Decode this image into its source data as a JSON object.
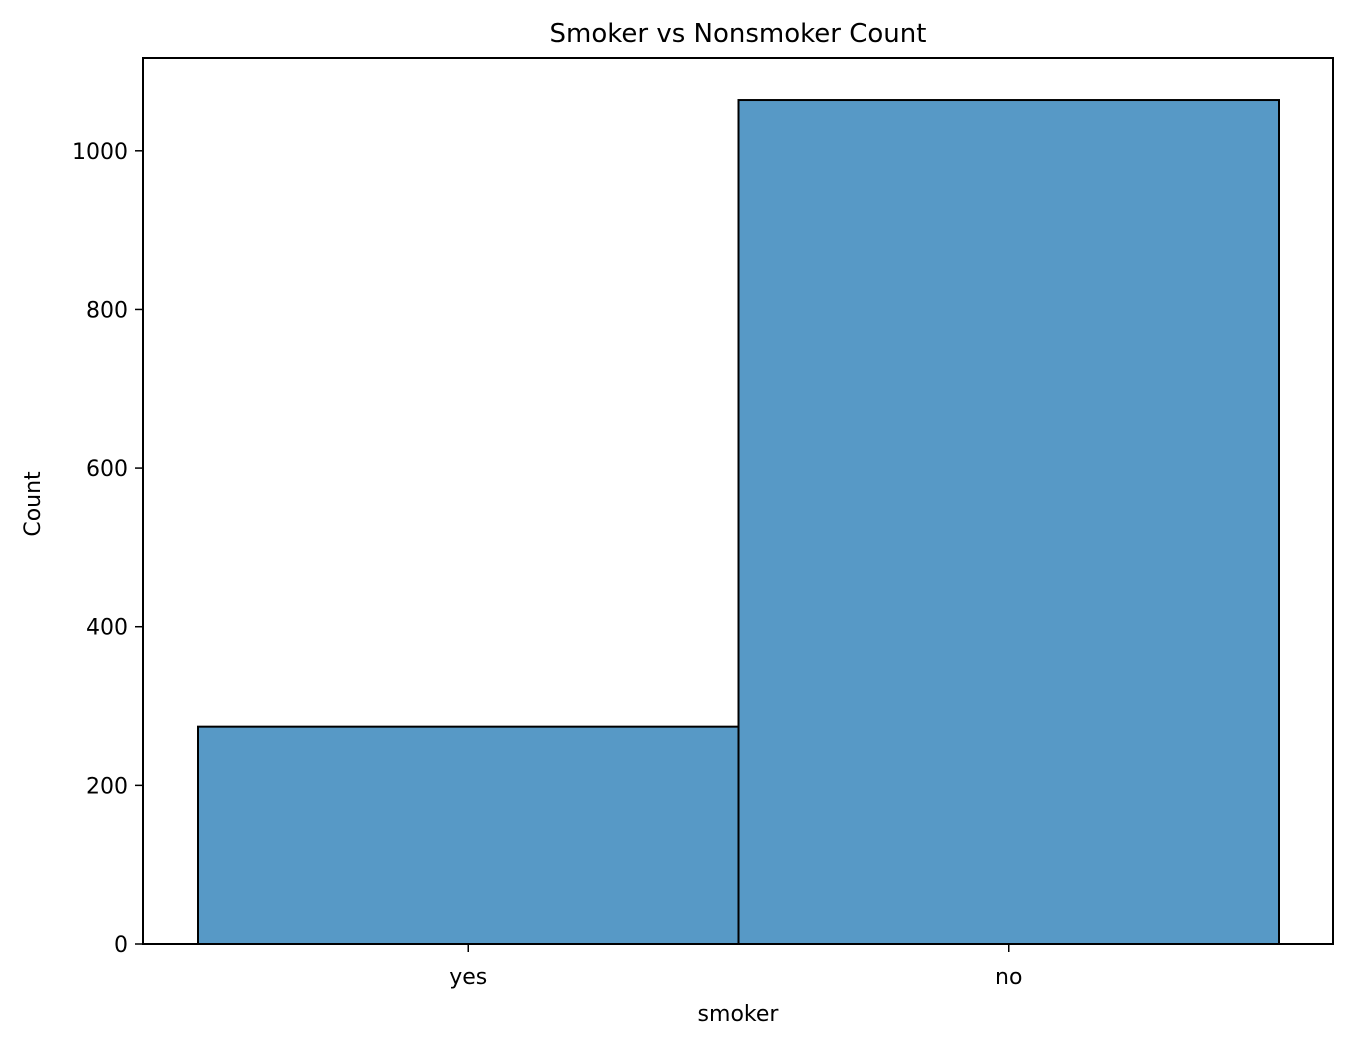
{
  "chart_data": {
    "type": "bar",
    "title": "Smoker vs Nonsmoker Count",
    "xlabel": "smoker",
    "ylabel": "Count",
    "categories": [
      "yes",
      "no"
    ],
    "values": [
      274,
      1064
    ],
    "ylim": [
      0,
      1117
    ],
    "yticks": [
      0,
      200,
      400,
      600,
      800,
      1000
    ],
    "grid": false,
    "bar_color": "#5799c6",
    "edge_color": "#000000"
  }
}
